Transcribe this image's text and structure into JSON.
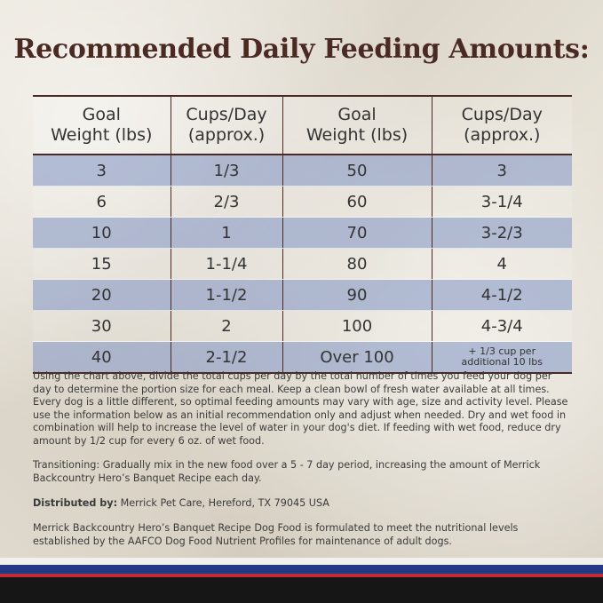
{
  "title": "Recommended Daily Feeding Amounts:",
  "table": {
    "headers": [
      [
        "Goal",
        "Weight (lbs)"
      ],
      [
        "Cups/Day",
        "(approx.)"
      ],
      [
        "Goal",
        "Weight (lbs)"
      ],
      [
        "Cups/Day",
        "(approx.)"
      ]
    ],
    "rows": [
      [
        "3",
        "1/3",
        "50",
        "3"
      ],
      [
        "6",
        "2/3",
        "60",
        "3-1/4"
      ],
      [
        "10",
        "1",
        "70",
        "3-2/3"
      ],
      [
        "15",
        "1-1/4",
        "80",
        "4"
      ],
      [
        "20",
        "1-1/2",
        "90",
        "4-1/2"
      ],
      [
        "30",
        "2",
        "100",
        "4-3/4"
      ],
      [
        "40",
        "2-1/2",
        "Over 100",
        ""
      ]
    ],
    "last_note": [
      "+ 1/3 cup per",
      "additional 10 lbs"
    ]
  },
  "instructions": "Using the chart above, divide the total cups per day by the total number of times you feed your dog per day to determine the portion size for each meal. Keep a clean bowl of fresh water available at all times. Every dog is a little different, so optimal feeding amounts may vary with age, size and activity level. Please use the information below as an initial recommendation only and adjust when needed. Dry and wet food in combination will help to increase the level of water in your dog's diet. If feeding with wet food, reduce dry amount by 1/2 cup for every 6 oz. of wet food.",
  "transitioning": "Transitioning: Gradually mix in the new food over a 5 - 7 day period, increasing the amount of Merrick Backcountry Hero’s Banquet Recipe each day.",
  "distributor": {
    "label": "Distributed by:",
    "text": " Merrick Pet Care, Hereford, TX 79045 USA"
  },
  "aafco": "Merrick Backcountry Hero’s Banquet Recipe Dog Food is formulated to meet the nutritional levels established by the AAFCO Dog Food Nutrient Profiles for maintenance of adult dogs.",
  "colors": {
    "title": "#4a2a22",
    "row_shade": "#8c9ec8",
    "stripe_blue": "#233a86",
    "stripe_red": "#c22a36",
    "stripe_black": "#161616"
  }
}
